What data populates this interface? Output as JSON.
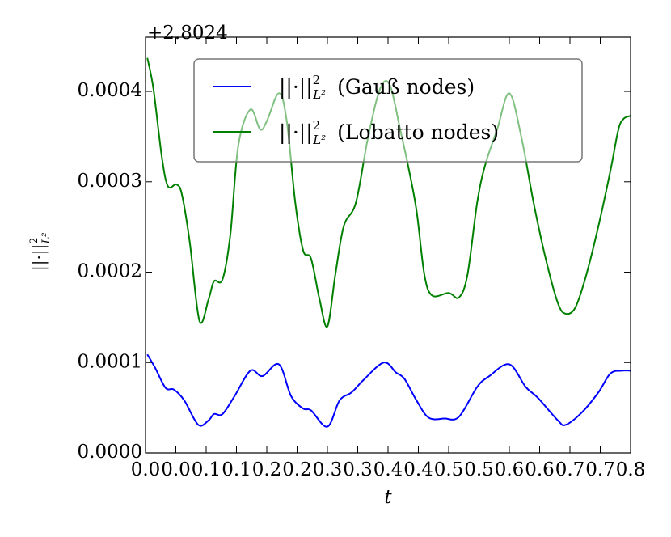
{
  "chart_data": {
    "type": "line",
    "offset_text": "+2.8024",
    "xlabel": "t",
    "norm_symbol": {
      "base": "||·||",
      "sup": "2",
      "sub": "L²"
    },
    "xlim": [
      0,
      0.8
    ],
    "ylim": [
      0,
      0.00046
    ],
    "xticks": [
      {
        "value": 0,
        "label": "0.0"
      },
      {
        "value": 0.05,
        "label": "0.0"
      },
      {
        "value": 0.1,
        "label": "0.1"
      },
      {
        "value": 0.15,
        "label": "0.1"
      },
      {
        "value": 0.2,
        "label": "0.2"
      },
      {
        "value": 0.25,
        "label": "0.2"
      },
      {
        "value": 0.3,
        "label": "0.3"
      },
      {
        "value": 0.35,
        "label": "0.3"
      },
      {
        "value": 0.4,
        "label": "0.4"
      },
      {
        "value": 0.45,
        "label": "0.4"
      },
      {
        "value": 0.5,
        "label": "0.5"
      },
      {
        "value": 0.55,
        "label": "0.5"
      },
      {
        "value": 0.6,
        "label": "0.6"
      },
      {
        "value": 0.65,
        "label": "0.6"
      },
      {
        "value": 0.7,
        "label": "0.7"
      },
      {
        "value": 0.75,
        "label": "0.7"
      },
      {
        "value": 0.8,
        "label": "0.8"
      }
    ],
    "yticks": [
      {
        "value": 0,
        "label": "0.0000"
      },
      0.0001,
      0.0002,
      0.0003,
      0.0004
    ],
    "legend": "upper center",
    "series": [
      {
        "name": "(Gauß nodes)",
        "color": "#0000ff",
        "x": [
          0.003,
          0.016,
          0.033,
          0.047,
          0.064,
          0.087,
          0.104,
          0.113,
          0.127,
          0.147,
          0.173,
          0.193,
          0.22,
          0.24,
          0.26,
          0.273,
          0.3,
          0.32,
          0.34,
          0.36,
          0.393,
          0.413,
          0.427,
          0.447,
          0.467,
          0.493,
          0.517,
          0.547,
          0.567,
          0.6,
          0.627,
          0.647,
          0.68,
          0.693,
          0.72,
          0.747,
          0.767,
          0.787,
          0.8
        ],
        "values": [
          0.000109,
          9.4e-05,
          7.2e-05,
          7e-05,
          5.8e-05,
          3.1e-05,
          3.6e-05,
          4.3e-05,
          4.3e-05,
          6.3e-05,
          9.1e-05,
          8.5e-05,
          9.8e-05,
          6.3e-05,
          4.9e-05,
          4.7e-05,
          2.9e-05,
          5.8e-05,
          6.7e-05,
          8.1e-05,
          0.0001,
          8.9e-05,
          8.2e-05,
          5.8e-05,
          3.9e-05,
          3.8e-05,
          4e-05,
          7.3e-05,
          8.5e-05,
          9.8e-05,
          7.3e-05,
          6.1e-05,
          3.6e-05,
          3.1e-05,
          4.5e-05,
          6.7e-05,
          8.8e-05,
          9.1e-05,
          9.1e-05
        ]
      },
      {
        "name": "(Lobatto nodes)",
        "color": "#008000",
        "x": [
          0.003,
          0.013,
          0.027,
          0.037,
          0.051,
          0.06,
          0.073,
          0.089,
          0.104,
          0.113,
          0.127,
          0.14,
          0.153,
          0.173,
          0.189,
          0.2,
          0.22,
          0.233,
          0.247,
          0.26,
          0.273,
          0.287,
          0.3,
          0.313,
          0.327,
          0.347,
          0.367,
          0.387,
          0.403,
          0.42,
          0.433,
          0.447,
          0.46,
          0.473,
          0.5,
          0.517,
          0.531,
          0.547,
          0.56,
          0.58,
          0.6,
          0.62,
          0.64,
          0.66,
          0.68,
          0.693,
          0.709,
          0.727,
          0.747,
          0.767,
          0.78,
          0.789,
          0.8
        ],
        "values": [
          0.000437,
          0.000403,
          0.000327,
          0.000295,
          0.000297,
          0.000286,
          0.000233,
          0.000146,
          0.00017,
          0.00019,
          0.000192,
          0.000242,
          0.00034,
          0.00038,
          0.000358,
          0.000367,
          0.000398,
          0.000367,
          0.000277,
          0.000224,
          0.000215,
          0.00017,
          0.00014,
          0.000197,
          0.000251,
          0.000277,
          0.000349,
          0.000403,
          0.000407,
          0.000358,
          0.000318,
          0.000268,
          0.000197,
          0.000174,
          0.000177,
          0.000172,
          0.000197,
          0.000277,
          0.000318,
          0.000358,
          0.000398,
          0.000349,
          0.000277,
          0.000215,
          0.000166,
          0.000154,
          0.000161,
          0.000197,
          0.000251,
          0.000313,
          0.000358,
          0.00037,
          0.000373
        ]
      }
    ]
  }
}
